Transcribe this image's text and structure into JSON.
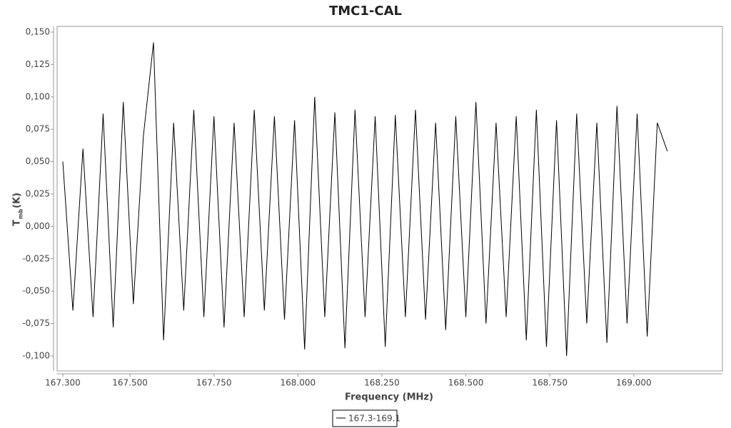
{
  "chart_data": {
    "type": "line",
    "title": "TMC1-CAL",
    "xlabel": "Frequency (MHz)",
    "ylabel": {
      "main": "T",
      "sub": "mb",
      "unit": "(K)"
    },
    "xlim": [
      167.283,
      169.264
    ],
    "ylim": [
      -0.1116,
      0.1544
    ],
    "xticks": [
      {
        "value": 167.3,
        "label": "167.300"
      },
      {
        "value": 167.5,
        "label": "167.500"
      },
      {
        "value": 167.75,
        "label": "167.750"
      },
      {
        "value": 168.0,
        "label": "168.000"
      },
      {
        "value": 168.25,
        "label": "168.250"
      },
      {
        "value": 168.5,
        "label": "168.500"
      },
      {
        "value": 168.75,
        "label": "168.750"
      },
      {
        "value": 169.0,
        "label": "169.000"
      }
    ],
    "yticks": [
      {
        "value": -0.1,
        "label": "-0,100"
      },
      {
        "value": -0.075,
        "label": "-0,075"
      },
      {
        "value": -0.05,
        "label": "-0,050"
      },
      {
        "value": -0.025,
        "label": "-0,025"
      },
      {
        "value": 0,
        "label": "0,000"
      },
      {
        "value": 0.025,
        "label": "0,025"
      },
      {
        "value": 0.05,
        "label": "0,050"
      },
      {
        "value": 0.075,
        "label": "0,075"
      },
      {
        "value": 0.1,
        "label": "0,100"
      },
      {
        "value": 0.125,
        "label": "0,125"
      },
      {
        "value": 0.15,
        "label": "0,150"
      }
    ],
    "grid": false,
    "legend": "bottom",
    "x": [
      167.3,
      167.33,
      167.36,
      167.39,
      167.42,
      167.45,
      167.48,
      167.51,
      167.54,
      167.57,
      167.6,
      167.63,
      167.66,
      167.69,
      167.72,
      167.75,
      167.78,
      167.81,
      167.84,
      167.87,
      167.9,
      167.93,
      167.96,
      167.99,
      168.02,
      168.05,
      168.08,
      168.11,
      168.14,
      168.17,
      168.2,
      168.23,
      168.26,
      168.29,
      168.32,
      168.35,
      168.38,
      168.41,
      168.44,
      168.47,
      168.5,
      168.53,
      168.56,
      168.59,
      168.62,
      168.65,
      168.68,
      168.71,
      168.74,
      168.77,
      168.8,
      168.83,
      168.86,
      168.89,
      168.92,
      168.95,
      168.98,
      169.01,
      169.04,
      169.07,
      169.1
    ],
    "series": [
      {
        "name": "167.3-169.1",
        "color": "#000000",
        "values": [
          0.05,
          -0.065,
          0.06,
          -0.07,
          0.087,
          -0.078,
          0.096,
          -0.06,
          0.07,
          0.142,
          -0.088,
          0.08,
          -0.065,
          0.09,
          -0.07,
          0.085,
          -0.078,
          0.08,
          -0.07,
          0.09,
          -0.065,
          0.085,
          -0.072,
          0.082,
          -0.095,
          0.1,
          -0.07,
          0.088,
          -0.094,
          0.09,
          -0.07,
          0.085,
          -0.093,
          0.086,
          -0.07,
          0.09,
          -0.072,
          0.08,
          -0.08,
          0.085,
          -0.07,
          0.096,
          -0.075,
          0.08,
          -0.07,
          0.085,
          -0.088,
          0.09,
          -0.093,
          0.082,
          -0.1,
          0.087,
          -0.075,
          0.08,
          -0.09,
          0.093,
          -0.075,
          0.087,
          -0.085,
          0.08,
          0.058
        ]
      }
    ]
  }
}
